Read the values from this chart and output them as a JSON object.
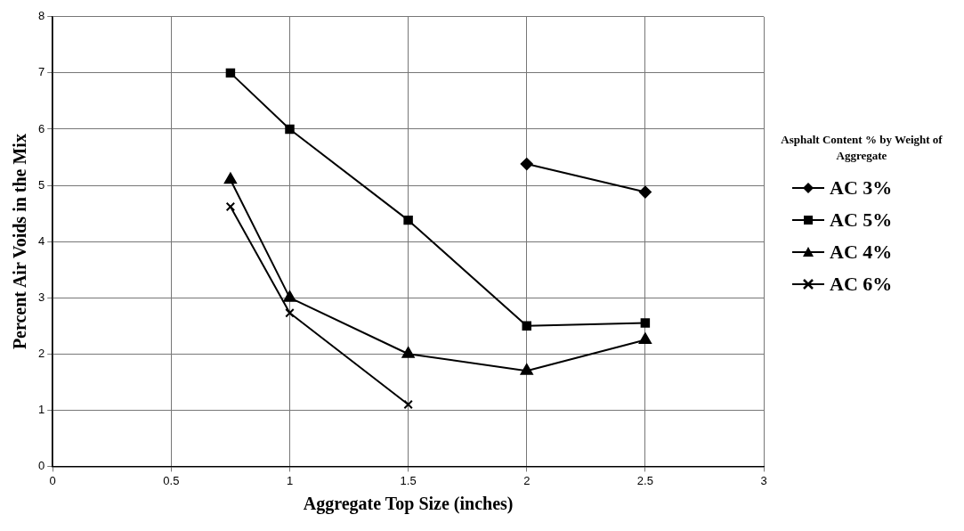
{
  "chart_data": {
    "type": "line",
    "xlabel": "Aggregate Top Size (inches)",
    "ylabel": "Percent Air Voids in the Mix",
    "legend_title": "Asphalt Content % by Weight of Aggregate",
    "legend": "right",
    "grid": true,
    "line_style": "solid",
    "xlim": [
      0,
      3
    ],
    "xticks": [
      0,
      0.5,
      1,
      1.5,
      2,
      2.5,
      3
    ],
    "ylim": [
      0,
      8
    ],
    "yticks": [
      0,
      1,
      2,
      3,
      4,
      5,
      6,
      7,
      8
    ],
    "series": [
      {
        "name": "AC 3%",
        "color": "#000000",
        "marker": "diamond",
        "x": [
          2,
          2.5
        ],
        "values": [
          5.38,
          4.88
        ]
      },
      {
        "name": "AC 5%",
        "color": "#000000",
        "marker": "square",
        "x": [
          0.75,
          1,
          1.5,
          2,
          2.5
        ],
        "values": [
          7,
          6,
          4.38,
          2.5,
          2.55
        ]
      },
      {
        "name": "AC 4%",
        "color": "#000000",
        "marker": "triangle",
        "x": [
          0.75,
          1,
          1.5,
          2,
          2.5
        ],
        "values": [
          5.1,
          3.0,
          2.0,
          1.7,
          2.25
        ]
      },
      {
        "name": "AC 6%",
        "color": "#000000",
        "marker": "cross",
        "x": [
          0.75,
          1,
          1.5
        ],
        "values": [
          4.62,
          2.73,
          1.1
        ]
      }
    ]
  }
}
